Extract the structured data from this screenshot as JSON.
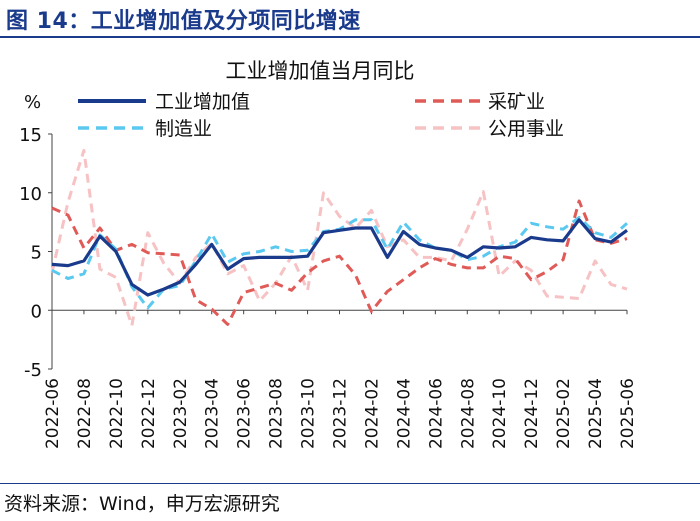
{
  "figure": {
    "title": "图 14：工业增加值及分项同比增速",
    "source": "资料来源：Wind，申万宏源研究"
  },
  "chart_data": {
    "type": "line",
    "title": "工业增加值当月同比",
    "unit_label": "%",
    "ylim": [
      -5,
      15
    ],
    "yticks": [
      -5,
      0,
      5,
      10,
      15
    ],
    "x_labels": [
      "2022-06",
      "2022-08",
      "2022-10",
      "2022-12",
      "2023-02",
      "2023-04",
      "2023-06",
      "2023-08",
      "2023-10",
      "2023-12",
      "2024-02",
      "2024-04",
      "2024-06",
      "2024-08",
      "2024-10",
      "2024-12",
      "2025-02",
      "2025-04",
      "2025-06"
    ],
    "x": [
      "2022-06",
      "2022-07",
      "2022-08",
      "2022-09",
      "2022-10",
      "2022-11",
      "2022-12",
      "2023-01",
      "2023-02",
      "2023-03",
      "2023-04",
      "2023-05",
      "2023-06",
      "2023-07",
      "2023-08",
      "2023-09",
      "2023-10",
      "2023-11",
      "2023-12",
      "2024-01",
      "2024-02",
      "2024-03",
      "2024-04",
      "2024-05",
      "2024-06",
      "2024-07",
      "2024-08",
      "2024-09",
      "2024-10",
      "2024-11",
      "2024-12",
      "2025-01",
      "2025-02",
      "2025-03",
      "2025-04",
      "2025-05",
      "2025-06"
    ],
    "series": [
      {
        "name": "工业增加值",
        "color": "#1a3a8c",
        "style": "solid",
        "values": [
          3.9,
          3.8,
          4.2,
          6.3,
          5.0,
          2.2,
          1.3,
          1.8,
          2.4,
          3.9,
          5.6,
          3.5,
          4.4,
          4.5,
          4.5,
          4.5,
          4.6,
          6.6,
          6.8,
          7.0,
          7.0,
          4.5,
          6.7,
          5.6,
          5.3,
          5.1,
          4.5,
          5.4,
          5.3,
          5.4,
          6.2,
          6.0,
          5.9,
          7.7,
          6.1,
          5.8,
          6.8
        ]
      },
      {
        "name": "采矿业",
        "color": "#e05a57",
        "style": "dashed",
        "values": [
          8.7,
          8.1,
          5.3,
          7.0,
          5.1,
          5.6,
          4.9,
          4.8,
          4.7,
          0.9,
          0.1,
          -1.2,
          1.5,
          1.9,
          2.3,
          1.7,
          3.2,
          4.2,
          4.6,
          3.0,
          -0.1,
          1.6,
          2.6,
          3.6,
          4.4,
          3.9,
          3.6,
          3.6,
          4.6,
          4.4,
          2.6,
          3.3,
          4.3,
          9.3,
          6.0,
          5.7,
          6.1
        ]
      },
      {
        "name": "制造业",
        "color": "#5bc8f0",
        "style": "dashed",
        "values": [
          3.4,
          2.7,
          3.1,
          6.4,
          5.2,
          2.0,
          0.2,
          1.8,
          2.1,
          4.2,
          6.5,
          4.1,
          4.8,
          5.0,
          5.4,
          5.0,
          5.1,
          6.7,
          6.9,
          7.7,
          7.7,
          5.2,
          7.5,
          6.0,
          5.3,
          5.1,
          4.3,
          4.6,
          5.4,
          5.8,
          7.4,
          7.1,
          6.9,
          7.9,
          6.6,
          6.2,
          7.4
        ]
      },
      {
        "name": "公用事业",
        "color": "#f7c2c4",
        "style": "dashed",
        "values": [
          3.2,
          9.2,
          13.6,
          3.5,
          2.8,
          -1.3,
          6.6,
          4.0,
          2.3,
          4.5,
          5.7,
          3.1,
          3.8,
          0.8,
          2.3,
          4.6,
          1.7,
          10.0,
          8.0,
          7.0,
          8.5,
          5.4,
          6.0,
          4.5,
          4.5,
          4.2,
          6.9,
          10.1,
          2.9,
          4.2,
          3.4,
          1.2,
          1.1,
          1.0,
          4.2,
          2.2,
          1.8
        ]
      }
    ]
  }
}
